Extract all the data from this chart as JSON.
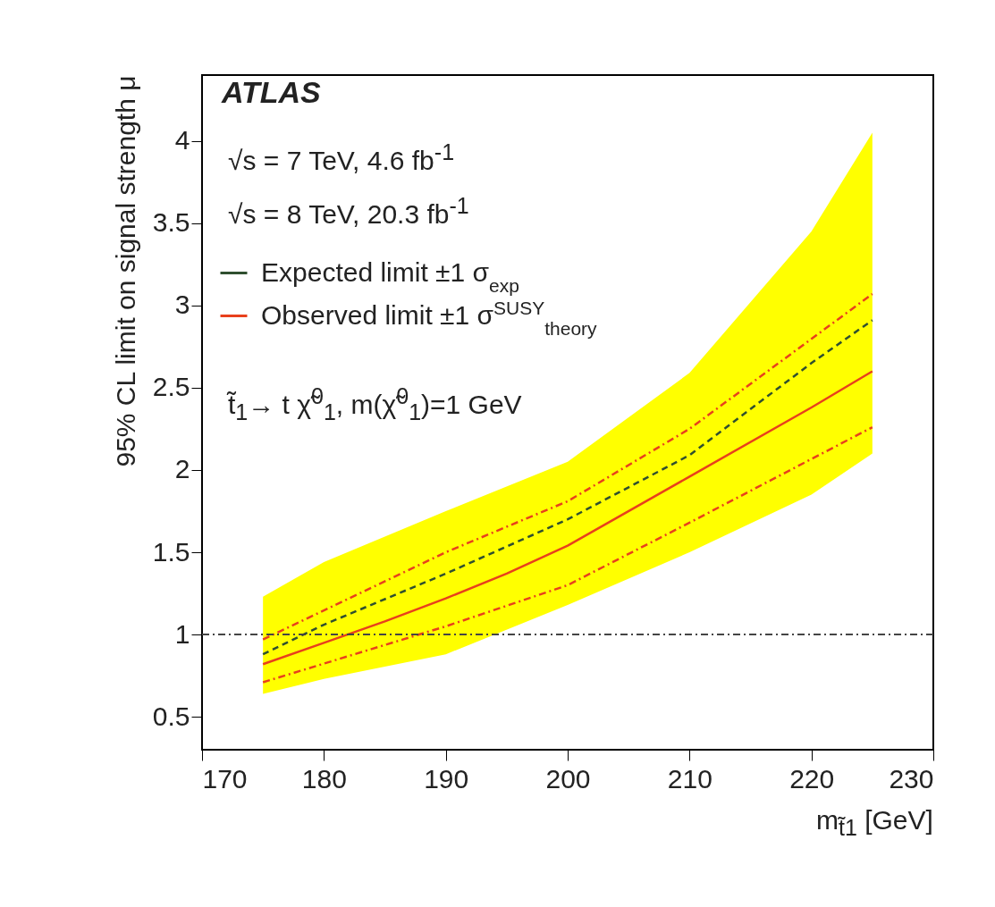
{
  "chart_data": {
    "type": "line",
    "title": "ATLAS",
    "annotations": [
      "√s = 7 TeV, 4.6 fb$^{-1}$",
      "√s = 8 TeV, 20.3 fb$^{-1}$",
      "t̃$_{1}$→ t χ̃$^{0}$$_{1}$, m(χ̃$^{0}$$_{1}$)=1 GeV"
    ],
    "xlabel": "m$_{t̃1}$ [GeV]",
    "ylabel": "95% CL limit on signal strength μ",
    "xlim": [
      170,
      230
    ],
    "xticks": [
      170,
      180,
      190,
      200,
      210,
      220,
      230
    ],
    "ylim": [
      0.3,
      4.4
    ],
    "yticks": [
      0.5,
      1,
      1.5,
      2,
      2.5,
      3,
      3.5,
      4
    ],
    "grid": false,
    "legend": "top left",
    "series": [
      {
        "name": "Expected limit ±1 σ$_{exp}$",
        "color": "#2f4f2f",
        "line_style": "dashed",
        "x": [
          175,
          180,
          190,
          200,
          210,
          220,
          225
        ],
        "values": [
          0.88,
          1.06,
          1.37,
          1.7,
          2.09,
          2.65,
          2.91
        ],
        "lower": [
          0.64,
          0.73,
          0.88,
          1.18,
          1.5,
          1.85,
          2.1
        ],
        "upper": [
          1.23,
          1.44,
          1.75,
          2.05,
          2.59,
          3.45,
          4.05
        ]
      },
      {
        "name": "Observed limit ±1 σ$^{SUSY}$$_{theory}$",
        "color": "#e8401c",
        "line_style": "solid",
        "x": [
          175,
          180,
          185,
          190,
          195,
          200,
          210,
          220,
          225
        ],
        "values": [
          0.82,
          0.95,
          1.08,
          1.22,
          1.37,
          1.54,
          1.96,
          2.38,
          2.6
        ]
      },
      {
        "color": "#e8401c",
        "line_style": "dotted",
        "x": [
          175,
          190,
          200,
          210,
          225
        ],
        "values": [
          0.97,
          1.5,
          1.81,
          2.25,
          3.07
        ]
      },
      {
        "color": "#e8401c",
        "line_style": "dotted",
        "x": [
          175,
          190,
          200,
          210,
          225
        ],
        "values": [
          0.71,
          1.05,
          1.3,
          1.68,
          2.26
        ]
      }
    ],
    "ref_lines": [
      {
        "axis": "y",
        "value": 1,
        "color": "#444444",
        "line_style": "dotted"
      }
    ]
  }
}
